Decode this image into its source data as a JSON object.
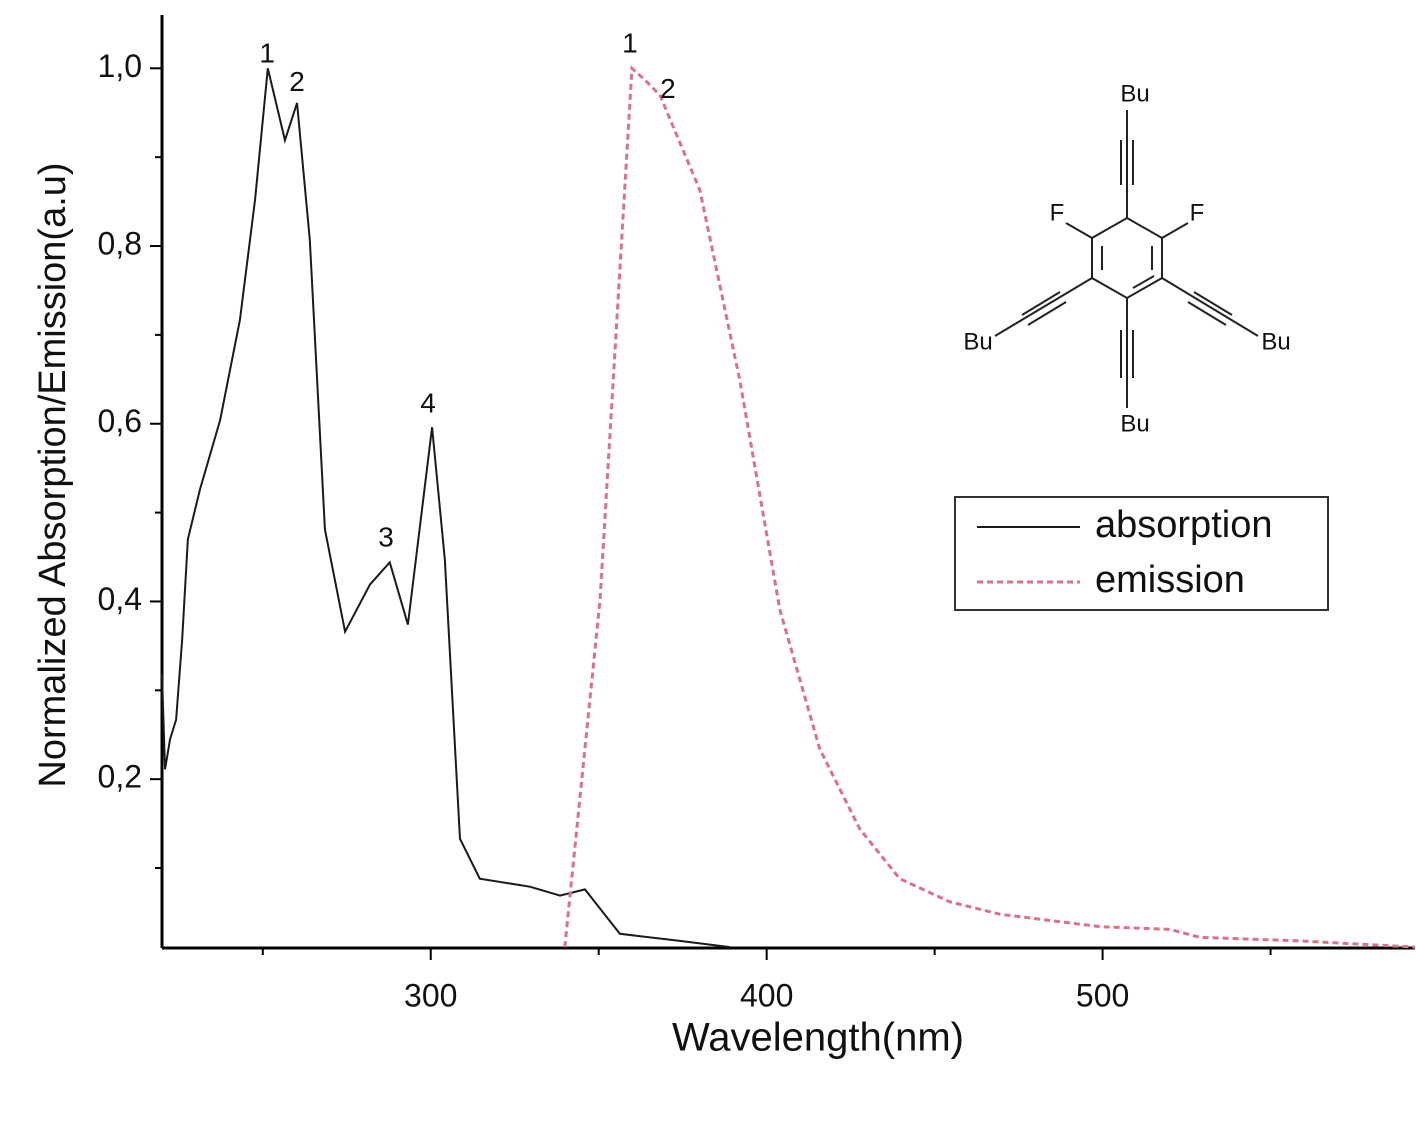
{
  "chart_data": {
    "type": "line",
    "xlabel": "Wavelength(nm)",
    "ylabel": "Normalized Absorption/Emission(a.u)",
    "xlim": [
      220,
      593
    ],
    "xticks": [
      300,
      400,
      500
    ],
    "xminorticks": [
      250,
      350,
      450,
      550
    ],
    "ylim": [
      0.01,
      1.06
    ],
    "yticks": [
      {
        "value": 0.2,
        "label": "0,2"
      },
      {
        "value": 0.4,
        "label": "0,4"
      },
      {
        "value": 0.6,
        "label": "0,6"
      },
      {
        "value": 0.8,
        "label": "0,8"
      },
      {
        "value": 1.0,
        "label": "1,0"
      }
    ],
    "yminorticks": [
      0.1,
      0.3,
      0.5,
      0.7,
      0.9
    ],
    "legend": "upper right",
    "series": [
      {
        "name": "absorption",
        "color": "#1a1a1a",
        "dash": false,
        "x": [
          220,
          220.9,
          222.4,
          224.2,
          226,
          227.7,
          231.3,
          237.3,
          243.2,
          247.7,
          251.5,
          256.6,
          260.2,
          264,
          268.5,
          274.5,
          281.9,
          287.8,
          293.2,
          300.4,
          304.2,
          308.7,
          314.6,
          329.5,
          338.5,
          345.9,
          356.3,
          374.2,
          389
        ],
        "values": [
          0.318,
          0.211,
          0.245,
          0.267,
          0.357,
          0.47,
          0.526,
          0.604,
          0.717,
          0.852,
          1.0,
          0.919,
          0.961,
          0.807,
          0.481,
          0.366,
          0.419,
          0.444,
          0.374,
          0.596,
          0.447,
          0.133,
          0.088,
          0.079,
          0.069,
          0.076,
          0.026,
          0.018,
          0.011
        ]
      },
      {
        "name": "emission",
        "color": "#e0708a",
        "dash": true,
        "x": [
          339.9,
          350.4,
          359.9,
          363.7,
          368.2,
          380.1,
          392,
          403.9,
          415.8,
          427.7,
          439.6,
          454.5,
          469.4,
          499.2,
          520,
          528.9,
          558.7,
          593
        ],
        "values": [
          0.011,
          0.402,
          1.0,
          0.987,
          0.97,
          0.863,
          0.649,
          0.391,
          0.234,
          0.144,
          0.088,
          0.062,
          0.048,
          0.034,
          0.031,
          0.022,
          0.018,
          0.011
        ]
      }
    ],
    "annotations": [
      {
        "text": "1",
        "x": 251.3,
        "y": 1.015
      },
      {
        "text": "2",
        "x": 260.2,
        "y": 0.983
      },
      {
        "text": "3",
        "x": 286.7,
        "y": 0.47
      },
      {
        "text": "4",
        "x": 299.2,
        "y": 0.621
      },
      {
        "text": "1",
        "x": 359.3,
        "y": 1.026
      },
      {
        "text": "2",
        "x": 370.6,
        "y": 0.975
      }
    ]
  },
  "structure": {
    "substituents": [
      "Bu",
      "F",
      "F",
      "Bu",
      "Bu",
      "Bu"
    ]
  }
}
